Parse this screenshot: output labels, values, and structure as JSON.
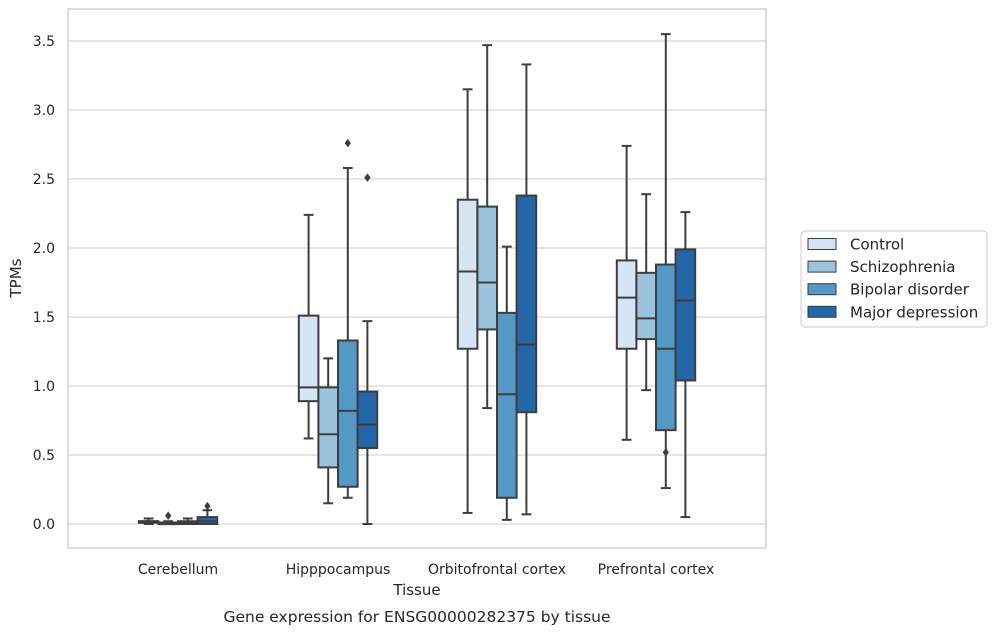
{
  "chart_data": {
    "type": "box",
    "caption": "Gene expression for ENSG00000282375 by tissue",
    "xlabel": "Tissue",
    "ylabel": "TPMs",
    "ylim": [
      -0.17,
      3.7
    ],
    "yticks": [
      0.0,
      0.5,
      1.0,
      1.5,
      2.0,
      2.5,
      3.0,
      3.5
    ],
    "ytick_labels": [
      "0.0",
      "0.5",
      "1.0",
      "1.5",
      "2.0",
      "2.5",
      "3.0",
      "3.5"
    ],
    "grid": "horizontal",
    "legend_position": "right",
    "categories": [
      "Cerebellum",
      "Hipppocampus",
      "Orbitofrontal cortex",
      "Prefrontal cortex"
    ],
    "series": [
      {
        "name": "Control",
        "color": "#d6e5f4",
        "boxes": [
          {
            "whislo": 0.0,
            "q1": 0.01,
            "med": 0.02,
            "q3": 0.02,
            "whishi": 0.04,
            "fliers": []
          },
          {
            "whislo": 0.62,
            "q1": 0.89,
            "med": 0.99,
            "q3": 1.51,
            "whishi": 2.24,
            "fliers": []
          },
          {
            "whislo": 0.08,
            "q1": 1.27,
            "med": 1.83,
            "q3": 2.35,
            "whishi": 3.15,
            "fliers": []
          },
          {
            "whislo": 0.61,
            "q1": 1.27,
            "med": 1.64,
            "q3": 1.91,
            "whishi": 2.74,
            "fliers": []
          }
        ]
      },
      {
        "name": "Schizophrenia",
        "color": "#9ac4de",
        "boxes": [
          {
            "whislo": 0.0,
            "q1": 0.0,
            "med": 0.01,
            "q3": 0.01,
            "whishi": 0.02,
            "fliers": [
              0.06
            ]
          },
          {
            "whislo": 0.15,
            "q1": 0.41,
            "med": 0.65,
            "q3": 0.99,
            "whishi": 1.2,
            "fliers": []
          },
          {
            "whislo": 0.84,
            "q1": 1.41,
            "med": 1.75,
            "q3": 2.3,
            "whishi": 3.47,
            "fliers": []
          },
          {
            "whislo": 0.97,
            "q1": 1.34,
            "med": 1.49,
            "q3": 1.82,
            "whishi": 2.39,
            "fliers": []
          }
        ]
      },
      {
        "name": "Bipolar disorder",
        "color": "#5498c6",
        "boxes": [
          {
            "whislo": 0.0,
            "q1": 0.0,
            "med": 0.01,
            "q3": 0.02,
            "whishi": 0.04,
            "fliers": []
          },
          {
            "whislo": 0.19,
            "q1": 0.27,
            "med": 0.82,
            "q3": 1.33,
            "whishi": 2.58,
            "fliers": [
              2.76
            ]
          },
          {
            "whislo": 0.03,
            "q1": 0.19,
            "med": 0.94,
            "q3": 1.53,
            "whishi": 2.01,
            "fliers": []
          },
          {
            "whislo": 0.26,
            "q1": 0.68,
            "med": 1.27,
            "q3": 1.88,
            "whishi": 3.55,
            "fliers": [
              0.52
            ]
          }
        ]
      },
      {
        "name": "Major depression",
        "color": "#2266a8",
        "boxes": [
          {
            "whislo": 0.0,
            "q1": 0.0,
            "med": 0.02,
            "q3": 0.05,
            "whishi": 0.1,
            "fliers": [
              0.13
            ]
          },
          {
            "whislo": 0.0,
            "q1": 0.55,
            "med": 0.72,
            "q3": 0.96,
            "whishi": 1.47,
            "fliers": [
              2.51
            ]
          },
          {
            "whislo": 0.07,
            "q1": 0.81,
            "med": 1.3,
            "q3": 2.38,
            "whishi": 3.33,
            "fliers": []
          },
          {
            "whislo": 0.05,
            "q1": 1.04,
            "med": 1.62,
            "q3": 1.99,
            "whishi": 2.26,
            "fliers": []
          }
        ]
      }
    ]
  },
  "colors": {
    "grid": "#cccccc",
    "frame": "#cccccc",
    "line": "#3d3d3d",
    "text": "#262626"
  }
}
